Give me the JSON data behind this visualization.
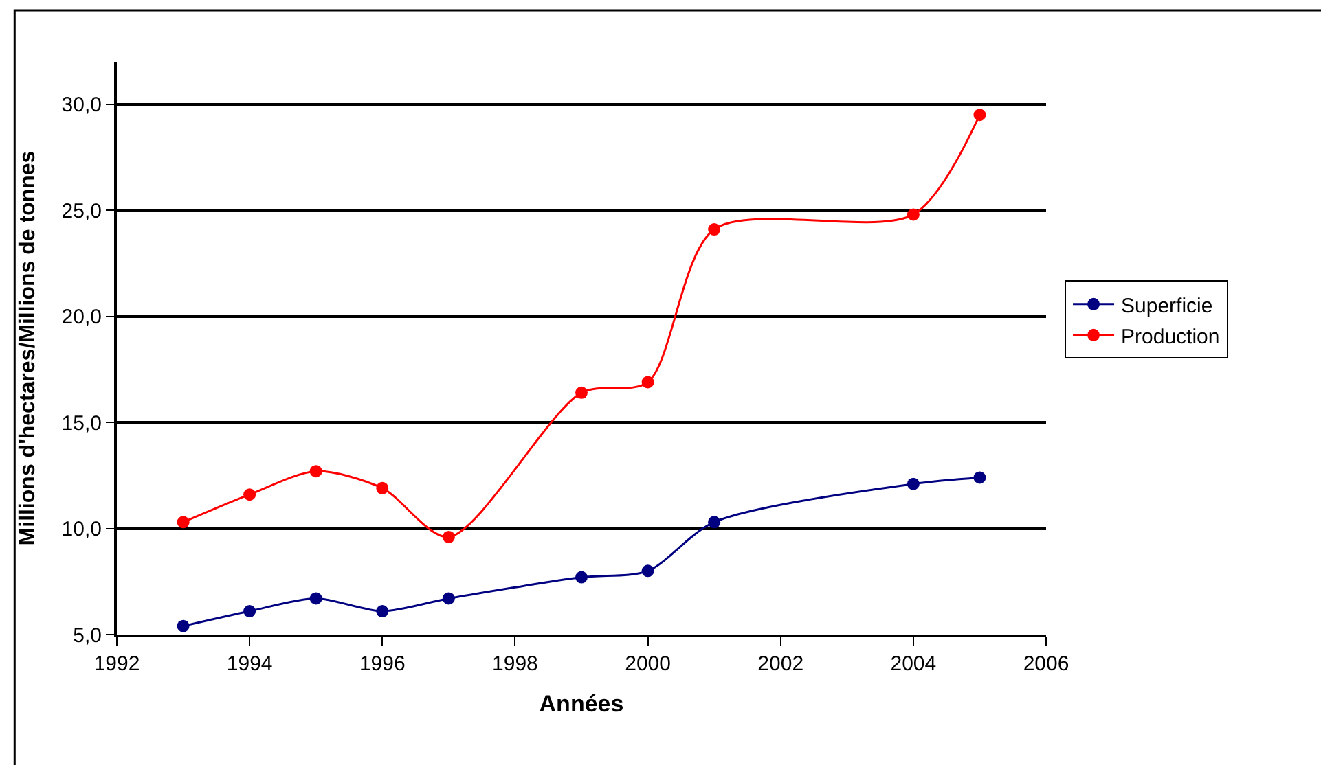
{
  "chart_data": {
    "type": "line",
    "xlabel": "Années",
    "ylabel": "Millions d'hectares/Millions de tonnes",
    "x": [
      1993,
      1994,
      1995,
      1996,
      1997,
      1999,
      2000,
      2001,
      2004,
      2005
    ],
    "series": [
      {
        "name": "Superficie",
        "color": "#000080",
        "values": [
          5.4,
          6.1,
          6.7,
          6.1,
          6.7,
          7.7,
          8.0,
          10.3,
          12.1,
          12.4
        ]
      },
      {
        "name": "Production",
        "color": "#ff0000",
        "values": [
          10.3,
          11.6,
          12.7,
          11.9,
          9.6,
          16.4,
          16.9,
          24.1,
          24.8,
          29.5
        ]
      }
    ],
    "xlim": [
      1992,
      2006
    ],
    "xticks": [
      1992,
      1994,
      1996,
      1998,
      2000,
      2002,
      2004,
      2006
    ],
    "ylim": [
      5,
      32
    ],
    "yticks": [
      {
        "value": 5,
        "label": "5,0"
      },
      {
        "value": 10,
        "label": "10,0"
      },
      {
        "value": 15,
        "label": "15,0"
      },
      {
        "value": 20,
        "label": "20,0"
      },
      {
        "value": 25,
        "label": "25,0"
      },
      {
        "value": 30,
        "label": "30,0"
      }
    ],
    "grid": "y",
    "legend": "right",
    "marker": "circle",
    "line_style": "solid"
  }
}
